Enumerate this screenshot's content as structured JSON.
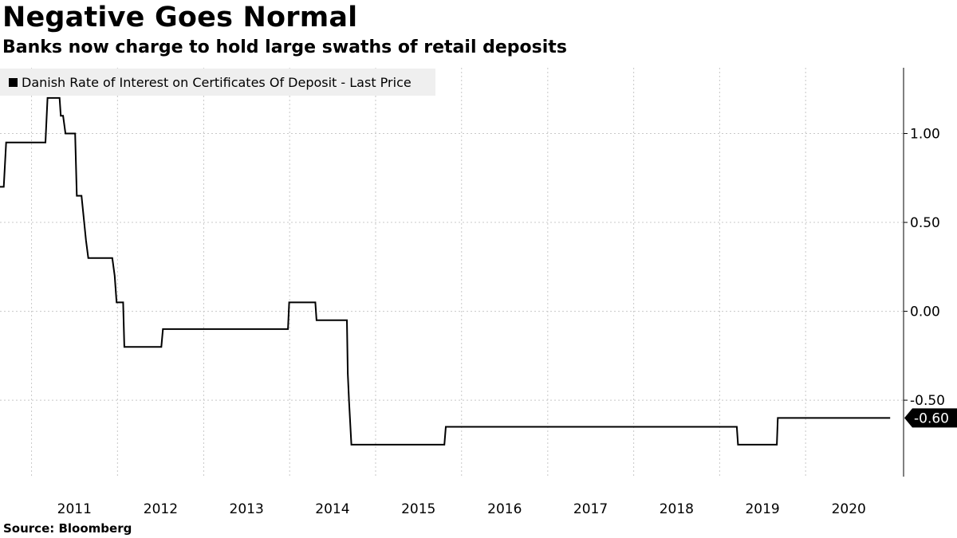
{
  "chart_data": {
    "type": "line",
    "title": "Negative Goes Normal",
    "subtitle": "Banks now charge to hold large swaths of retail deposits",
    "source": "Source: Bloomberg",
    "legend_position": "top-left",
    "grid": true,
    "x_type": "date",
    "xlim": [
      "2010-08-20",
      "2021-02-20"
    ],
    "ylim": [
      -0.93,
      1.37
    ],
    "y_axis_side": "right",
    "x_ticks": [
      "2011",
      "2012",
      "2013",
      "2014",
      "2015",
      "2016",
      "2017",
      "2018",
      "2019",
      "2020"
    ],
    "y_ticks": [
      {
        "value": 1.0,
        "label": "1.00"
      },
      {
        "value": 0.5,
        "label": "0.50"
      },
      {
        "value": 0.0,
        "label": "0.00"
      },
      {
        "value": -0.5,
        "label": "-0.50"
      }
    ],
    "last_value": {
      "value": -0.6,
      "label": "-0.60"
    },
    "series": [
      {
        "name": "Danish Rate of Interest on Certificates Of Deposit - Last Price",
        "color": "#000000",
        "points": [
          [
            "2010-08-20",
            0.7
          ],
          [
            "2010-09-05",
            0.7
          ],
          [
            "2010-09-15",
            0.95
          ],
          [
            "2011-03-01",
            0.95
          ],
          [
            "2011-03-10",
            1.2
          ],
          [
            "2011-04-30",
            1.2
          ],
          [
            "2011-05-05",
            1.1
          ],
          [
            "2011-05-15",
            1.1
          ],
          [
            "2011-05-25",
            1.0
          ],
          [
            "2011-07-05",
            1.0
          ],
          [
            "2011-07-12",
            0.65
          ],
          [
            "2011-08-01",
            0.65
          ],
          [
            "2011-08-20",
            0.4
          ],
          [
            "2011-08-30",
            0.3
          ],
          [
            "2011-12-10",
            0.3
          ],
          [
            "2011-12-20",
            0.2
          ],
          [
            "2011-12-28",
            0.05
          ],
          [
            "2012-01-25",
            0.05
          ],
          [
            "2012-01-30",
            -0.2
          ],
          [
            "2012-07-05",
            -0.2
          ],
          [
            "2012-07-12",
            -0.1
          ],
          [
            "2013-12-25",
            -0.1
          ],
          [
            "2013-12-30",
            0.05
          ],
          [
            "2014-04-20",
            0.05
          ],
          [
            "2014-04-25",
            -0.05
          ],
          [
            "2014-09-01",
            -0.05
          ],
          [
            "2014-09-05",
            -0.35
          ],
          [
            "2014-09-10",
            -0.5
          ],
          [
            "2014-09-20",
            -0.75
          ],
          [
            "2015-10-20",
            -0.75
          ],
          [
            "2015-10-26",
            -0.65
          ],
          [
            "2019-03-15",
            -0.65
          ],
          [
            "2019-03-20",
            -0.75
          ],
          [
            "2019-09-01",
            -0.75
          ],
          [
            "2019-09-05",
            -0.6
          ],
          [
            "2020-12-25",
            -0.6
          ]
        ]
      }
    ]
  }
}
